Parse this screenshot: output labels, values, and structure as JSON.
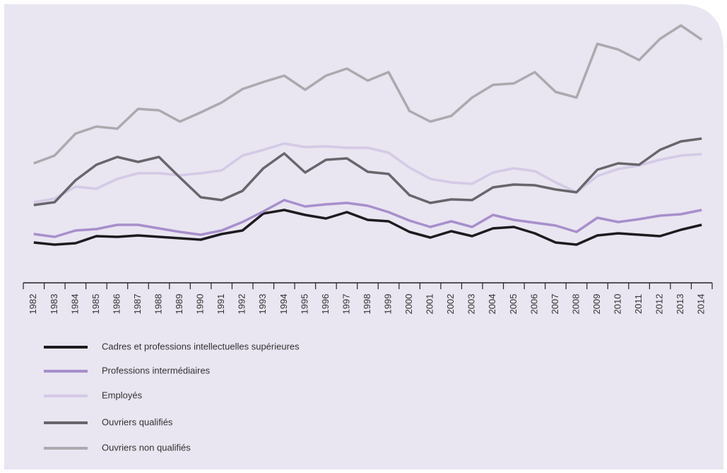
{
  "chart_data": {
    "type": "line",
    "categories": [
      "1982",
      "1983",
      "1984",
      "1985",
      "1986",
      "1987",
      "1988",
      "1989",
      "1990",
      "1991",
      "1992",
      "1993",
      "1994",
      "1995",
      "1996",
      "1997",
      "1998",
      "1999",
      "2000",
      "2001",
      "2002",
      "2003",
      "2004",
      "2005",
      "2006",
      "2007",
      "2008",
      "2009",
      "2010",
      "2011",
      "2012",
      "2013",
      "2014"
    ],
    "ylim": [
      0,
      100
    ],
    "series": [
      {
        "name": "Cadres et professions intellectuelles supérieures",
        "color": "#1e1b1f",
        "values": [
          14.25,
          13.5,
          14,
          16.5,
          16.25,
          16.75,
          16.25,
          15.75,
          15.25,
          17.25,
          18.5,
          24.5,
          25.75,
          24,
          22.75,
          25,
          22.25,
          21.75,
          18,
          16,
          18.25,
          16.5,
          19.25,
          19.75,
          17.5,
          14.25,
          13.5,
          16.75,
          17.5,
          17,
          16.5,
          18.75,
          20.5
        ]
      },
      {
        "name": "Professions intermédiaires",
        "color": "#a78fcb",
        "values": [
          17.25,
          16.25,
          18.5,
          19,
          20.5,
          20.5,
          19.25,
          18,
          17,
          18.5,
          21.5,
          25.25,
          29.25,
          27,
          27.75,
          28.25,
          27.25,
          25,
          22,
          19.75,
          21.75,
          19.75,
          24,
          22.25,
          21.25,
          20.25,
          18,
          23,
          21.5,
          22.5,
          23.75,
          24.25,
          25.75
        ]
      },
      {
        "name": "Employés",
        "color": "#d4cae6",
        "values": [
          28.5,
          29.75,
          34,
          33.25,
          36.75,
          38.75,
          38.75,
          38,
          38.75,
          39.75,
          45,
          47,
          49.25,
          48,
          48.25,
          47.75,
          47.75,
          46,
          40.75,
          36.75,
          35.5,
          35,
          39,
          40.5,
          39.5,
          35.5,
          32,
          37.75,
          40.25,
          41.5,
          43.5,
          45,
          45.5
        ]
      },
      {
        "name": "Ouvriers qualifiés",
        "color": "#68666b",
        "values": [
          27.5,
          28.5,
          36.25,
          41.75,
          44.5,
          42.75,
          44.5,
          37.25,
          30.25,
          29.25,
          32.5,
          40.5,
          45.75,
          39,
          43.5,
          44,
          39.25,
          38.5,
          31,
          28.25,
          29.5,
          29.25,
          33.75,
          34.75,
          34.5,
          33,
          32,
          40,
          42.25,
          41.75,
          47,
          50,
          51
        ]
      },
      {
        "name": "Ouvriers non qualifiés",
        "color": "#acaaae",
        "values": [
          42.25,
          45,
          52.75,
          55.25,
          54.5,
          61.5,
          61,
          57,
          60.25,
          63.75,
          68.5,
          71,
          73.25,
          68.25,
          73.25,
          75.75,
          71.5,
          74.5,
          60.75,
          57,
          59,
          65.5,
          70,
          70.5,
          74.5,
          67.5,
          65.5,
          84.5,
          82.5,
          78.75,
          86.25,
          91,
          86
        ]
      }
    ]
  }
}
